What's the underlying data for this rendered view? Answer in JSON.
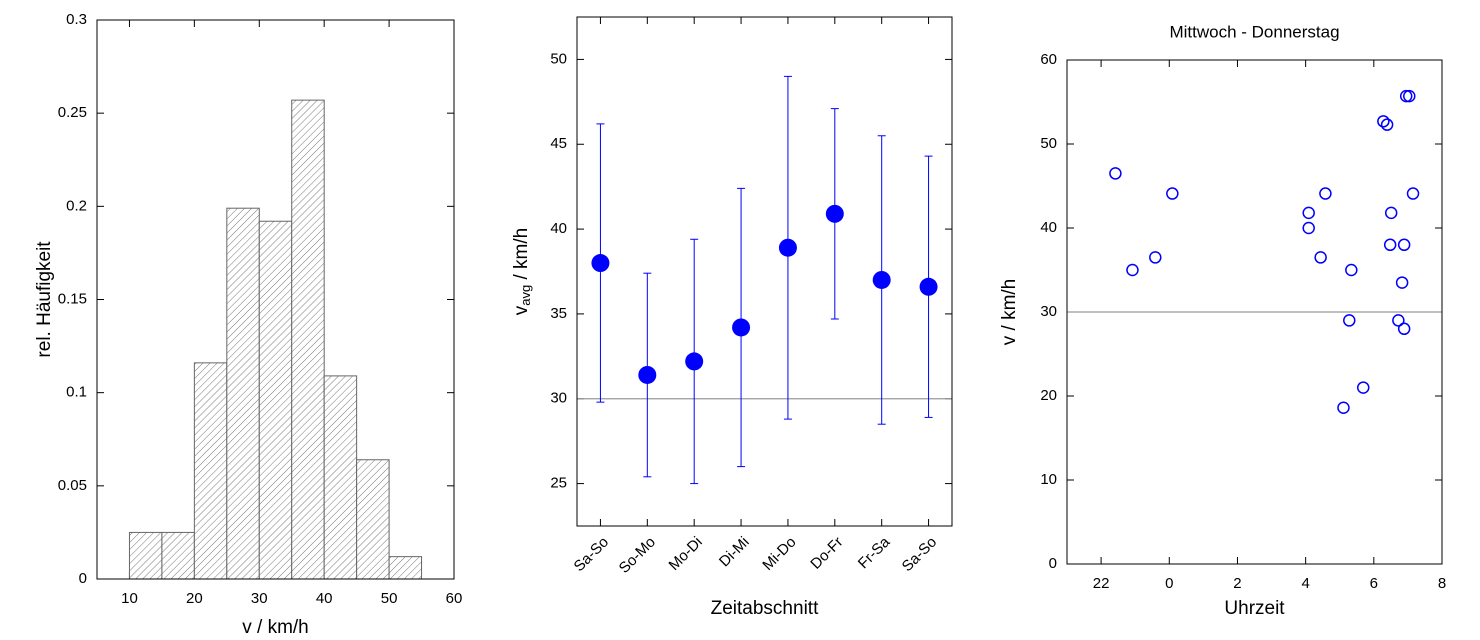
{
  "chart_data": [
    {
      "type": "histogram",
      "xlabel": "v / km/h",
      "ylabel": "rel. Häufigkeit",
      "bins": [
        10,
        15,
        20,
        25,
        30,
        35,
        40,
        45,
        50,
        55
      ],
      "values": [
        0.025,
        0.025,
        0.116,
        0.199,
        0.192,
        0.257,
        0.109,
        0.064,
        0.012
      ],
      "color": "#666666",
      "xlim": [
        5,
        60
      ],
      "xticks": [
        10,
        20,
        30,
        40,
        50,
        60
      ],
      "ylim": [
        0,
        0.3
      ],
      "yticks": [
        0,
        0.05,
        0.1,
        0.15,
        0.2,
        0.25,
        0.3
      ]
    },
    {
      "type": "errorbar",
      "xlabel": "Zeitabschnitt",
      "ylabel": "v",
      "ylabel_sub": "avg",
      "ylabel_rest": " / km/h",
      "categories": [
        "Sa-So",
        "So-Mo",
        "Mo-Di",
        "Di-Mi",
        "Mi-Do",
        "Do-Fr",
        "Fr-Sa",
        "Sa-So"
      ],
      "values": [
        38.0,
        31.4,
        32.2,
        34.2,
        38.9,
        40.9,
        37.0,
        36.6
      ],
      "errors": [
        8.2,
        6.0,
        7.2,
        8.2,
        10.1,
        6.2,
        8.5,
        7.7
      ],
      "color": "#0000ff",
      "hline": 30,
      "ylim": [
        22.5,
        52.5
      ],
      "yticks": [
        25,
        30,
        35,
        40,
        45,
        50
      ]
    },
    {
      "type": "scatter",
      "title": "Mittwoch - Donnerstag",
      "xlabel": "Uhrzeit",
      "ylabel": "v / km/h",
      "x": [
        -1.58,
        -1.08,
        -0.41,
        0.09,
        4.09,
        4.09,
        4.44,
        4.58,
        5.11,
        5.28,
        5.34,
        5.69,
        6.28,
        6.39,
        6.48,
        6.51,
        6.72,
        6.83,
        6.89,
        6.89,
        6.95,
        7.04,
        7.15
      ],
      "values": [
        46.5,
        35,
        36.5,
        44.1,
        41.8,
        40,
        36.5,
        44.1,
        18.6,
        29,
        35,
        21,
        52.7,
        52.3,
        38,
        41.8,
        29,
        33.5,
        38,
        28,
        55.7,
        55.7,
        44.1
      ],
      "color": "#0000ff",
      "hline": 30,
      "xlim": [
        -3,
        8
      ],
      "xticks": [
        {
          "value": -2,
          "label": "22"
        },
        0,
        2,
        4,
        6,
        8
      ],
      "ylim": [
        0,
        60
      ],
      "yticks": [
        0,
        10,
        20,
        30,
        40,
        50,
        60
      ]
    }
  ]
}
